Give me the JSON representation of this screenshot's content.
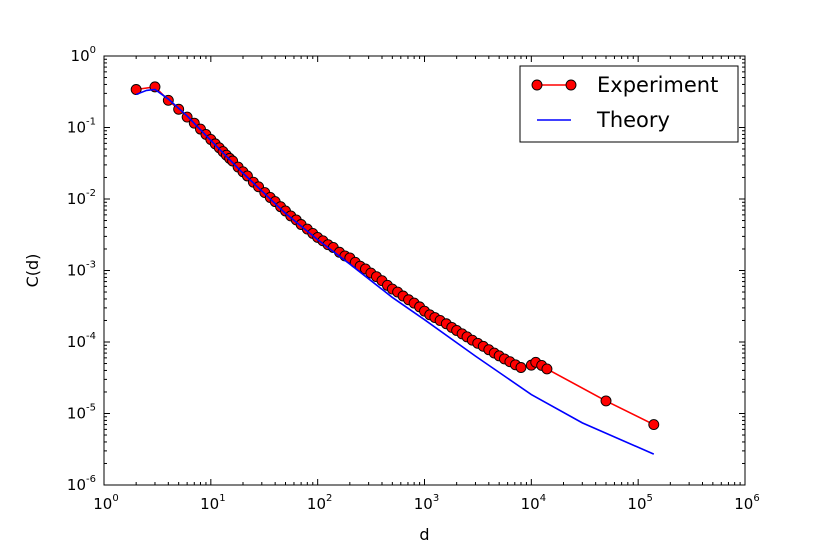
{
  "chart_data": {
    "type": "scatter",
    "title": "",
    "xlabel": "d",
    "ylabel": "C(d)",
    "xscale": "log",
    "yscale": "log",
    "xlim": [
      1,
      1000000
    ],
    "ylim": [
      1e-06,
      1
    ],
    "grid": false,
    "legend_position": "top-right",
    "x_ticks": [
      {
        "base": "10",
        "exp": "0"
      },
      {
        "base": "10",
        "exp": "1"
      },
      {
        "base": "10",
        "exp": "2"
      },
      {
        "base": "10",
        "exp": "3"
      },
      {
        "base": "10",
        "exp": "4"
      },
      {
        "base": "10",
        "exp": "5"
      },
      {
        "base": "10",
        "exp": "6"
      }
    ],
    "y_ticks": [
      {
        "base": "10",
        "exp": "-6"
      },
      {
        "base": "10",
        "exp": "-5"
      },
      {
        "base": "10",
        "exp": "-4"
      },
      {
        "base": "10",
        "exp": "-3"
      },
      {
        "base": "10",
        "exp": "-2"
      },
      {
        "base": "10",
        "exp": "-1"
      },
      {
        "base": "10",
        "exp": "0"
      }
    ],
    "series": [
      {
        "name": "Experiment",
        "style": "line-marker",
        "line_color": "#ff0000",
        "marker_color": "#ff0000",
        "marker_edge": "#000000",
        "x": [
          2,
          3,
          4,
          5,
          6,
          7,
          8,
          9,
          10,
          11,
          12,
          13,
          14,
          15,
          16,
          18,
          20,
          22,
          25,
          28,
          32,
          36,
          40,
          45,
          50,
          56,
          63,
          70,
          80,
          90,
          100,
          112,
          125,
          140,
          160,
          180,
          200,
          225,
          250,
          280,
          315,
          355,
          400,
          450,
          500,
          560,
          630,
          710,
          800,
          900,
          1000,
          1120,
          1250,
          1400,
          1600,
          1800,
          2000,
          2250,
          2500,
          2800,
          3150,
          3550,
          4000,
          4500,
          5000,
          5600,
          6300,
          7100,
          8000,
          10000,
          11000,
          12500,
          14000,
          50000,
          140000
        ],
        "y": [
          0.34,
          0.37,
          0.24,
          0.18,
          0.14,
          0.115,
          0.095,
          0.08,
          0.068,
          0.059,
          0.052,
          0.046,
          0.041,
          0.037,
          0.034,
          0.028,
          0.024,
          0.021,
          0.0172,
          0.0148,
          0.0123,
          0.0105,
          0.0092,
          0.0078,
          0.0068,
          0.0058,
          0.0051,
          0.0044,
          0.0038,
          0.0033,
          0.0029,
          0.0026,
          0.0023,
          0.0021,
          0.0018,
          0.0016,
          0.0015,
          0.0013,
          0.00115,
          0.00105,
          0.00092,
          0.00082,
          0.00072,
          0.00062,
          0.00055,
          0.0005,
          0.00044,
          0.00039,
          0.00035,
          0.00031,
          0.00027,
          0.00024,
          0.00022,
          0.0002,
          0.00018,
          0.00016,
          0.000145,
          0.00013,
          0.000118,
          0.000106,
          9.6e-05,
          8.7e-05,
          7.8e-05,
          7e-05,
          6.4e-05,
          5.8e-05,
          5.3e-05,
          4.8e-05,
          4.4e-05,
          4.75e-05,
          5.2e-05,
          4.7e-05,
          4.2e-05,
          1.5e-05,
          7e-06
        ]
      },
      {
        "name": "Theory",
        "style": "line",
        "line_color": "#0000ff",
        "x": [
          2,
          2.5,
          3,
          4,
          6,
          10,
          20,
          50,
          100,
          200,
          500,
          1000,
          3000,
          10000,
          30000,
          140000
        ],
        "y": [
          0.29,
          0.33,
          0.34,
          0.25,
          0.145,
          0.066,
          0.023,
          0.0063,
          0.0027,
          0.00123,
          0.00042,
          0.000205,
          6.35e-05,
          1.84e-05,
          7.4e-06,
          2.7e-06
        ]
      }
    ]
  }
}
